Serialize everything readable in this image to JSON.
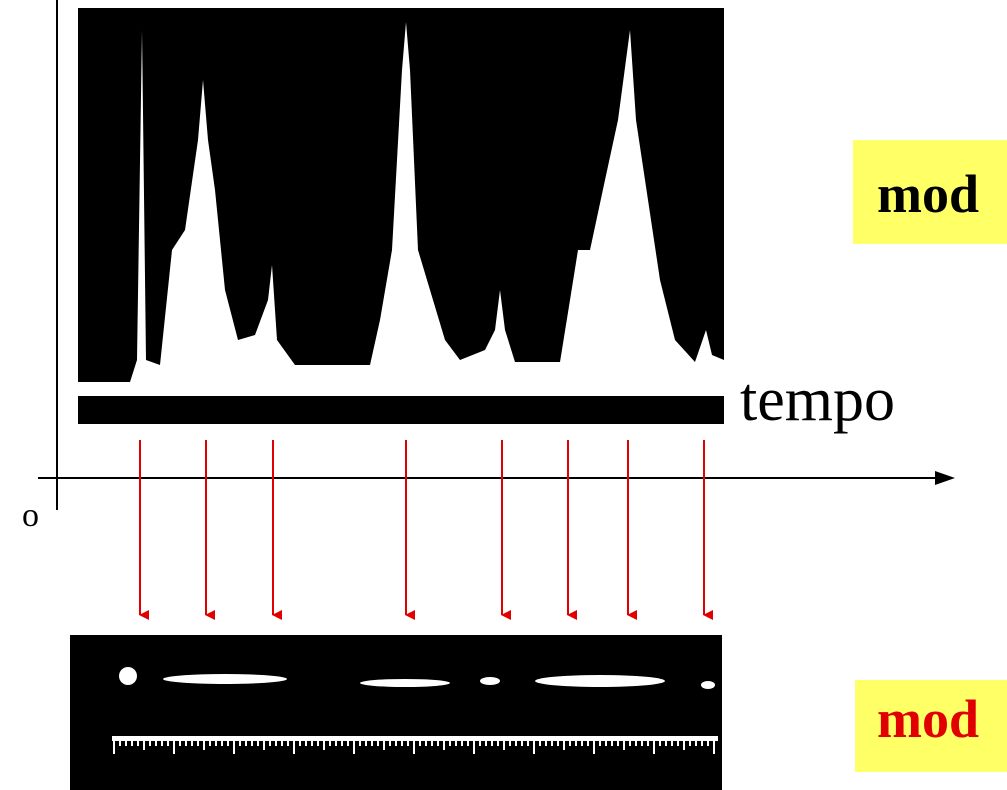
{
  "labels": {
    "a_mode": "mod",
    "time_axis": "tempo",
    "origin": "o",
    "b_mode": "mod"
  }
}
